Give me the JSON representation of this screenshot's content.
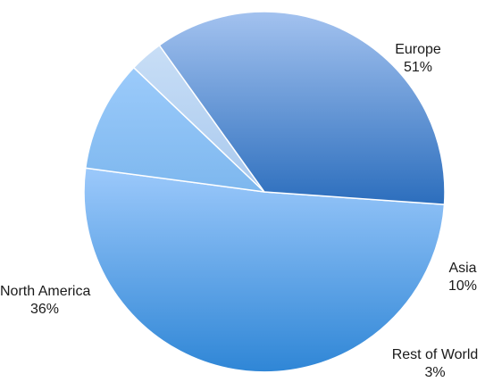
{
  "chart_data": {
    "type": "pie",
    "title": "",
    "slices": [
      {
        "label": "Europe",
        "value": 51,
        "pct_label": "51%",
        "color": "#4f95dc"
      },
      {
        "label": "Asia",
        "value": 10,
        "pct_label": "10%",
        "color": "#8cc0f2"
      },
      {
        "label": "Rest of World",
        "value": 3,
        "pct_label": "3%",
        "color": "#b8d5f4"
      },
      {
        "label": "North America",
        "value": 36,
        "pct_label": "36%",
        "color": "#5f8fd2"
      }
    ],
    "legend": "none",
    "data_labels": "outside"
  }
}
